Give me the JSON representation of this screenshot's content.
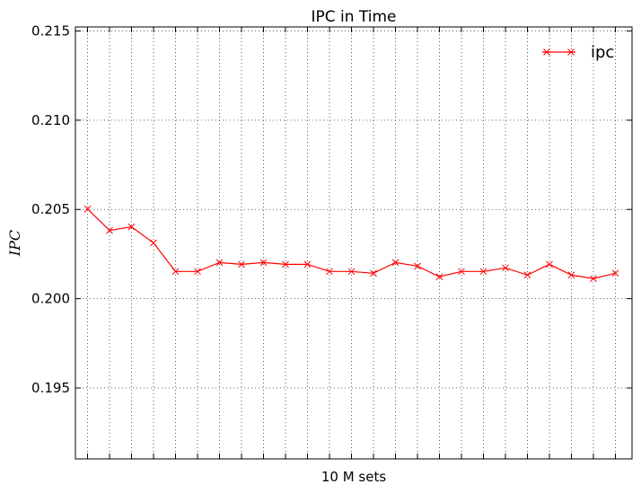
{
  "chart_data": {
    "type": "line",
    "title": "IPC in Time",
    "xlabel": "10 M sets",
    "ylabel": "IPC",
    "ylim": [
      0.191,
      0.2152
    ],
    "yticks": [
      0.195,
      0.2,
      0.205,
      0.21,
      0.215
    ],
    "ytick_labels": [
      "0.195",
      "0.200",
      "0.205",
      "0.210",
      "0.215"
    ],
    "x_count": 25,
    "grid": true,
    "legend_position": "top-right",
    "series": [
      {
        "name": "ipc",
        "color": "#ff0000",
        "marker": "x",
        "x": [
          1,
          2,
          3,
          4,
          5,
          6,
          7,
          8,
          9,
          10,
          11,
          12,
          13,
          14,
          15,
          16,
          17,
          18,
          19,
          20,
          21,
          22,
          23,
          24,
          25
        ],
        "values": [
          0.205,
          0.2038,
          0.204,
          0.2031,
          0.2015,
          0.2015,
          0.202,
          0.2019,
          0.202,
          0.2019,
          0.2019,
          0.2015,
          0.2015,
          0.2014,
          0.202,
          0.2018,
          0.2012,
          0.2015,
          0.2015,
          0.2017,
          0.2013,
          0.2019,
          0.2013,
          0.2011,
          0.2014
        ]
      }
    ]
  }
}
